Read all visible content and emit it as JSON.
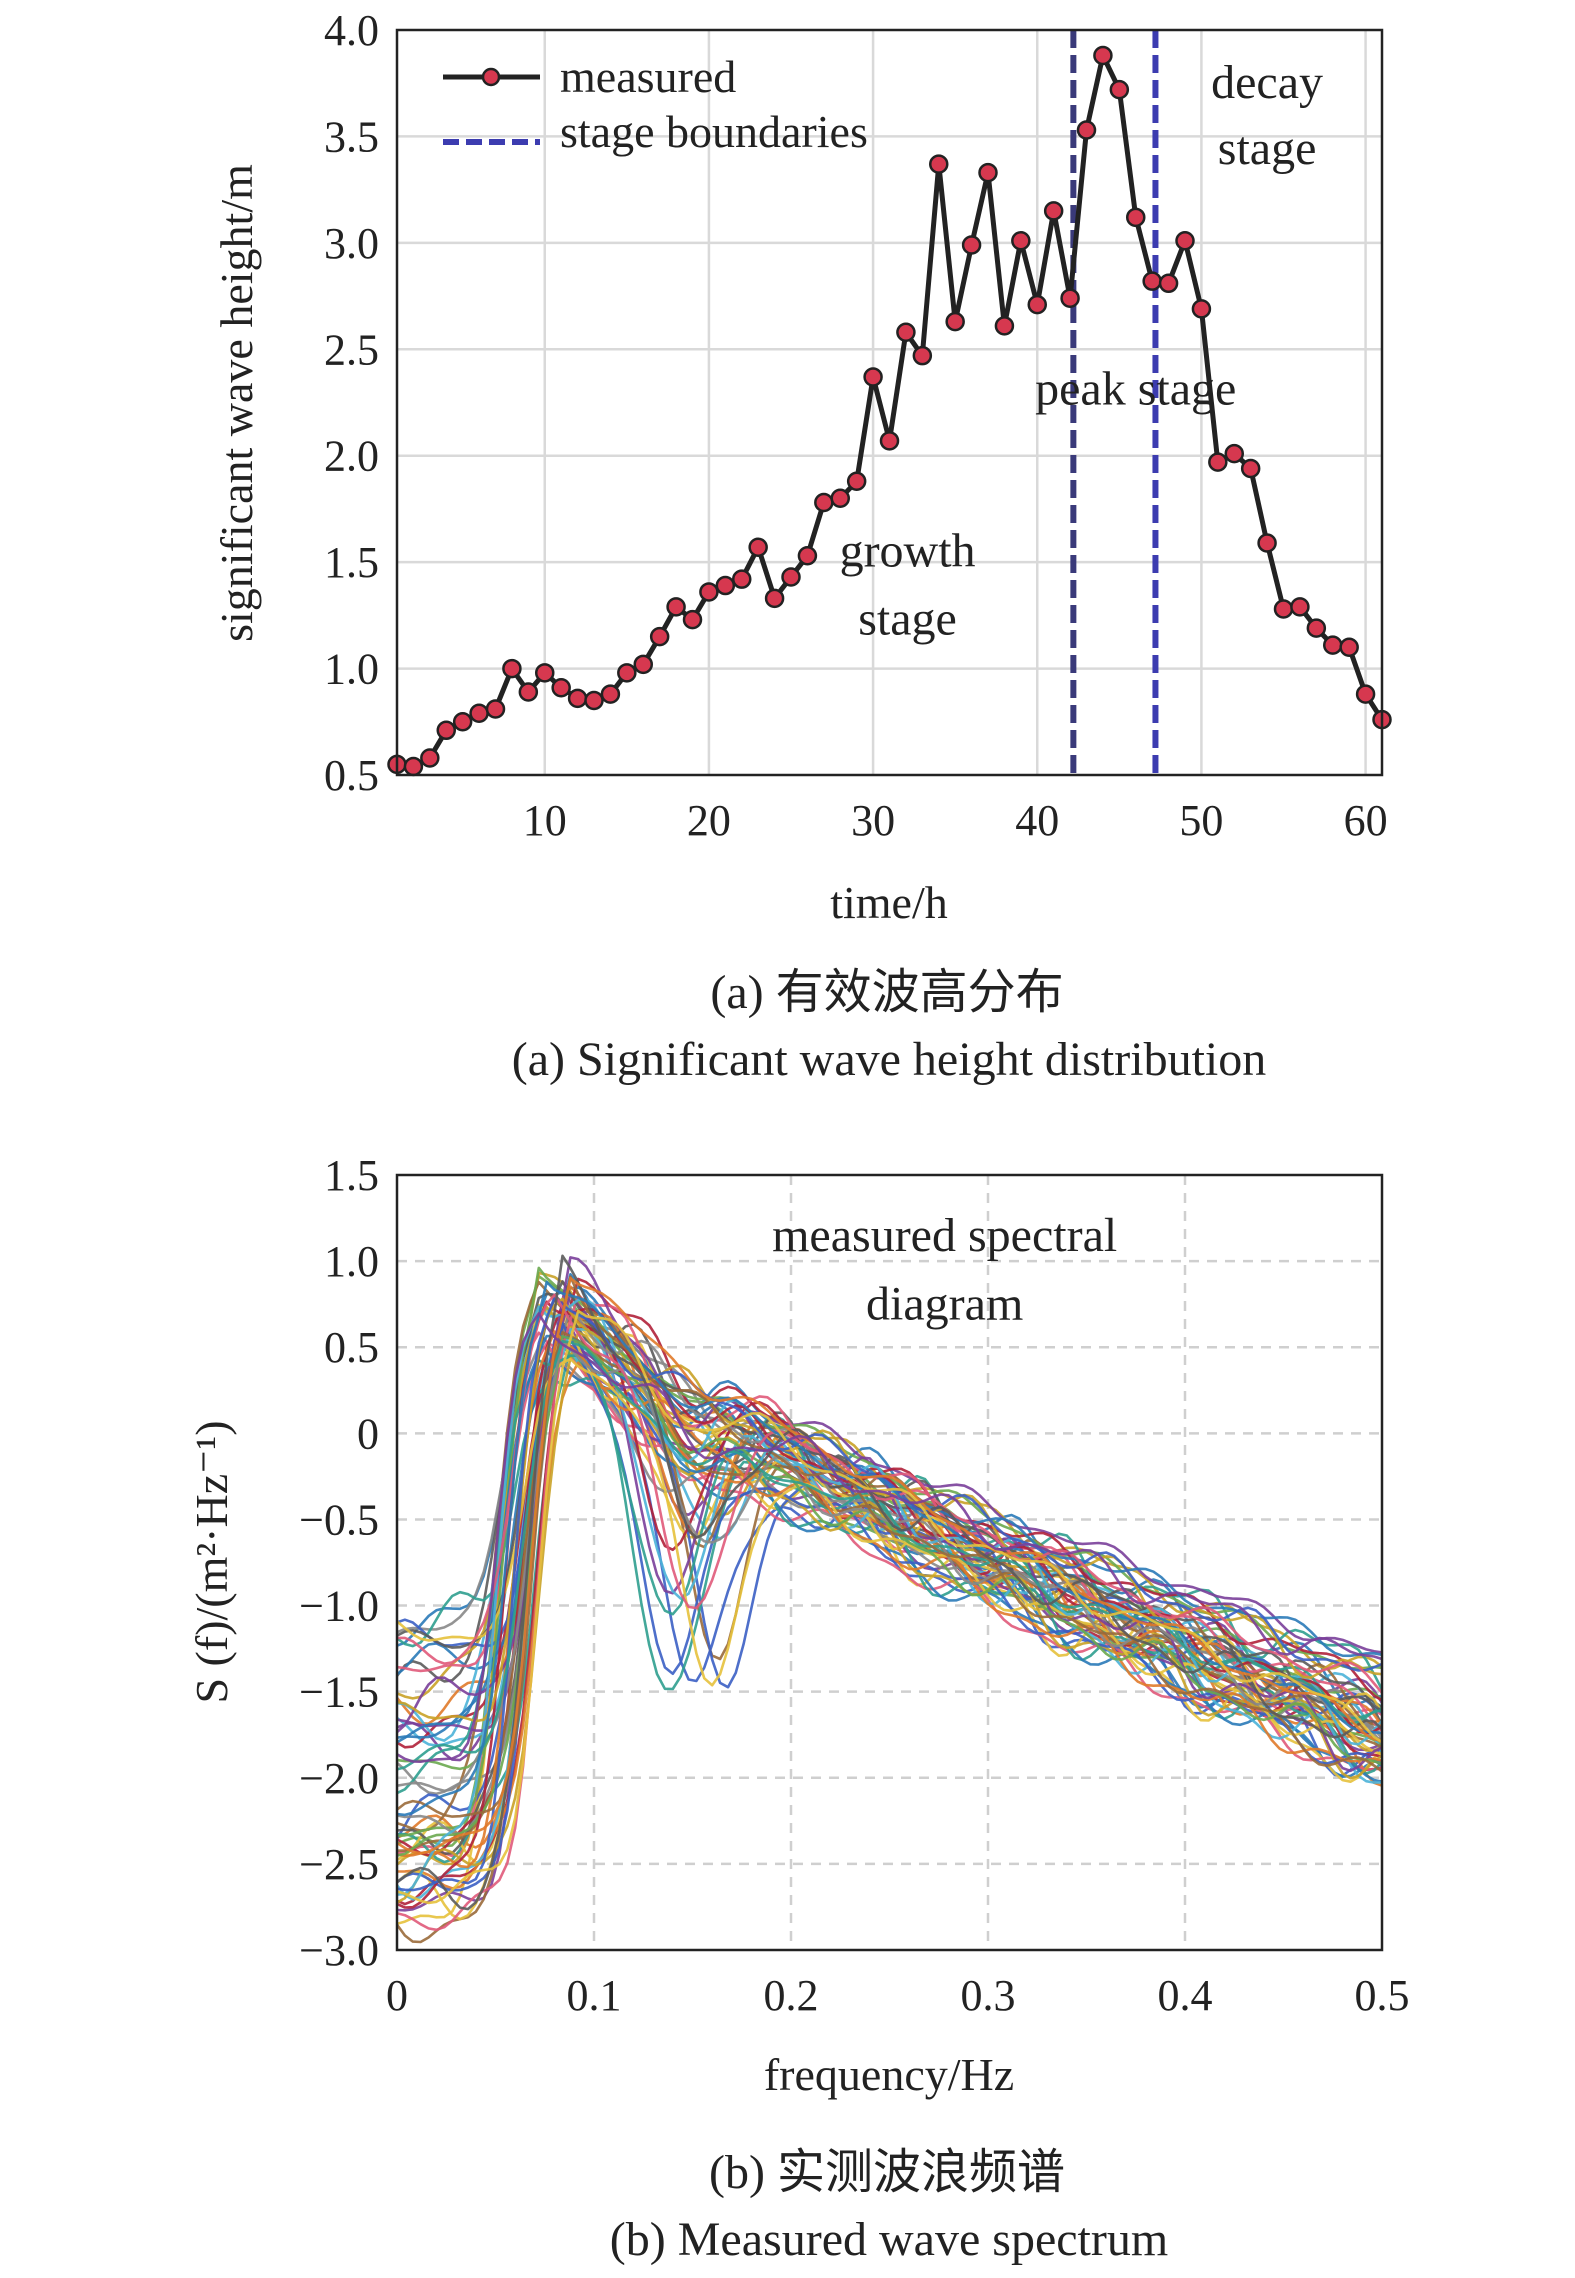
{
  "chart_data": [
    {
      "type": "line",
      "xlabel": "time/h",
      "ylabel": "significant wave height/m",
      "xlim": [
        1,
        61
      ],
      "ylim": [
        0.5,
        4.0
      ],
      "xticks": [
        10,
        20,
        30,
        40,
        50,
        60
      ],
      "yticks": [
        "0.5",
        "1.0",
        "1.5",
        "2.0",
        "2.5",
        "3.0",
        "3.5",
        "4.0"
      ],
      "grid": true,
      "legend_position": "top-left",
      "legend": [
        "measured",
        "stage boundaries"
      ],
      "series": [
        {
          "name": "measured",
          "color": "#222222",
          "marker_color": "#d6384f",
          "x": [
            1,
            2,
            3,
            4,
            5,
            6,
            7,
            8,
            9,
            10,
            11,
            12,
            13,
            14,
            15,
            16,
            17,
            18,
            19,
            20,
            21,
            22,
            23,
            24,
            25,
            26,
            27,
            28,
            29,
            30,
            31,
            32,
            33,
            34,
            35,
            36,
            37,
            38,
            39,
            40,
            41,
            42,
            43,
            44,
            45,
            46,
            47,
            48,
            49,
            50,
            51,
            52,
            53,
            54,
            55,
            56,
            57,
            58,
            59,
            60,
            61
          ],
          "y": [
            0.55,
            0.54,
            0.58,
            0.71,
            0.75,
            0.79,
            0.81,
            1.0,
            0.89,
            0.98,
            0.91,
            0.86,
            0.85,
            0.88,
            0.98,
            1.02,
            1.15,
            1.29,
            1.23,
            1.36,
            1.39,
            1.42,
            1.57,
            1.33,
            1.43,
            1.53,
            1.78,
            1.8,
            1.88,
            2.37,
            2.07,
            2.58,
            2.47,
            3.37,
            2.63,
            2.99,
            3.33,
            2.61,
            3.01,
            2.71,
            3.15,
            2.74,
            3.53,
            3.88,
            3.72,
            3.12,
            2.82,
            2.81,
            3.01,
            2.69,
            1.97,
            2.01,
            1.94,
            1.59,
            1.28,
            1.29,
            1.19,
            1.11,
            1.1,
            0.88,
            0.76
          ]
        }
      ],
      "vlines": [
        {
          "name": "stage boundaries",
          "x": 42.2,
          "color": "#3a3a7a"
        },
        {
          "name": "stage boundaries",
          "x": 47.2,
          "color": "#3c3cb0"
        }
      ],
      "annotations": [
        {
          "text": "decay",
          "x": 54,
          "y": 3.68
        },
        {
          "text": "stage",
          "x": 54,
          "y": 3.37
        },
        {
          "text": "peak stage",
          "x": 46,
          "y": 2.24
        },
        {
          "text": "growth",
          "x": 32.1,
          "y": 1.48
        },
        {
          "text": "stage",
          "x": 32.1,
          "y": 1.16
        }
      ]
    },
    {
      "type": "line",
      "xlabel": "frequency/Hz",
      "ylabel": "S (f)/(m²·Hz⁻¹)",
      "xlim": [
        0,
        0.5
      ],
      "ylim": [
        -3.0,
        1.5
      ],
      "xticks": [
        "0",
        "0.1",
        "0.2",
        "0.3",
        "0.4",
        "0.5"
      ],
      "yticks": [
        "1.5",
        "1.0",
        "0.5",
        "0",
        "−0.5",
        "−1.0",
        "−1.5",
        "−2.0",
        "−2.5",
        "−3.0"
      ],
      "grid": true,
      "series_count": 60,
      "palette": [
        "#2a7ab8",
        "#e07a2a",
        "#e6c13c",
        "#7a3f9a",
        "#6aa84f",
        "#4bb3d8",
        "#b0213a",
        "#888888",
        "#c9a227",
        "#3b5fc4",
        "#e05a7a",
        "#2f9e8f",
        "#9a6a3a",
        "#5b5b5b"
      ],
      "annotations": [
        {
          "text": "measured spectral",
          "x": 0.278,
          "y": 1.06
        },
        {
          "text": "diagram",
          "x": 0.278,
          "y": 0.66
        }
      ]
    }
  ],
  "captions": {
    "a_zh": "(a) 有效波高分布",
    "a_en": "(a) Significant wave height distribution",
    "b_zh": "(b) 实测波浪频谱",
    "b_en": "(b) Measured wave spectrum"
  }
}
